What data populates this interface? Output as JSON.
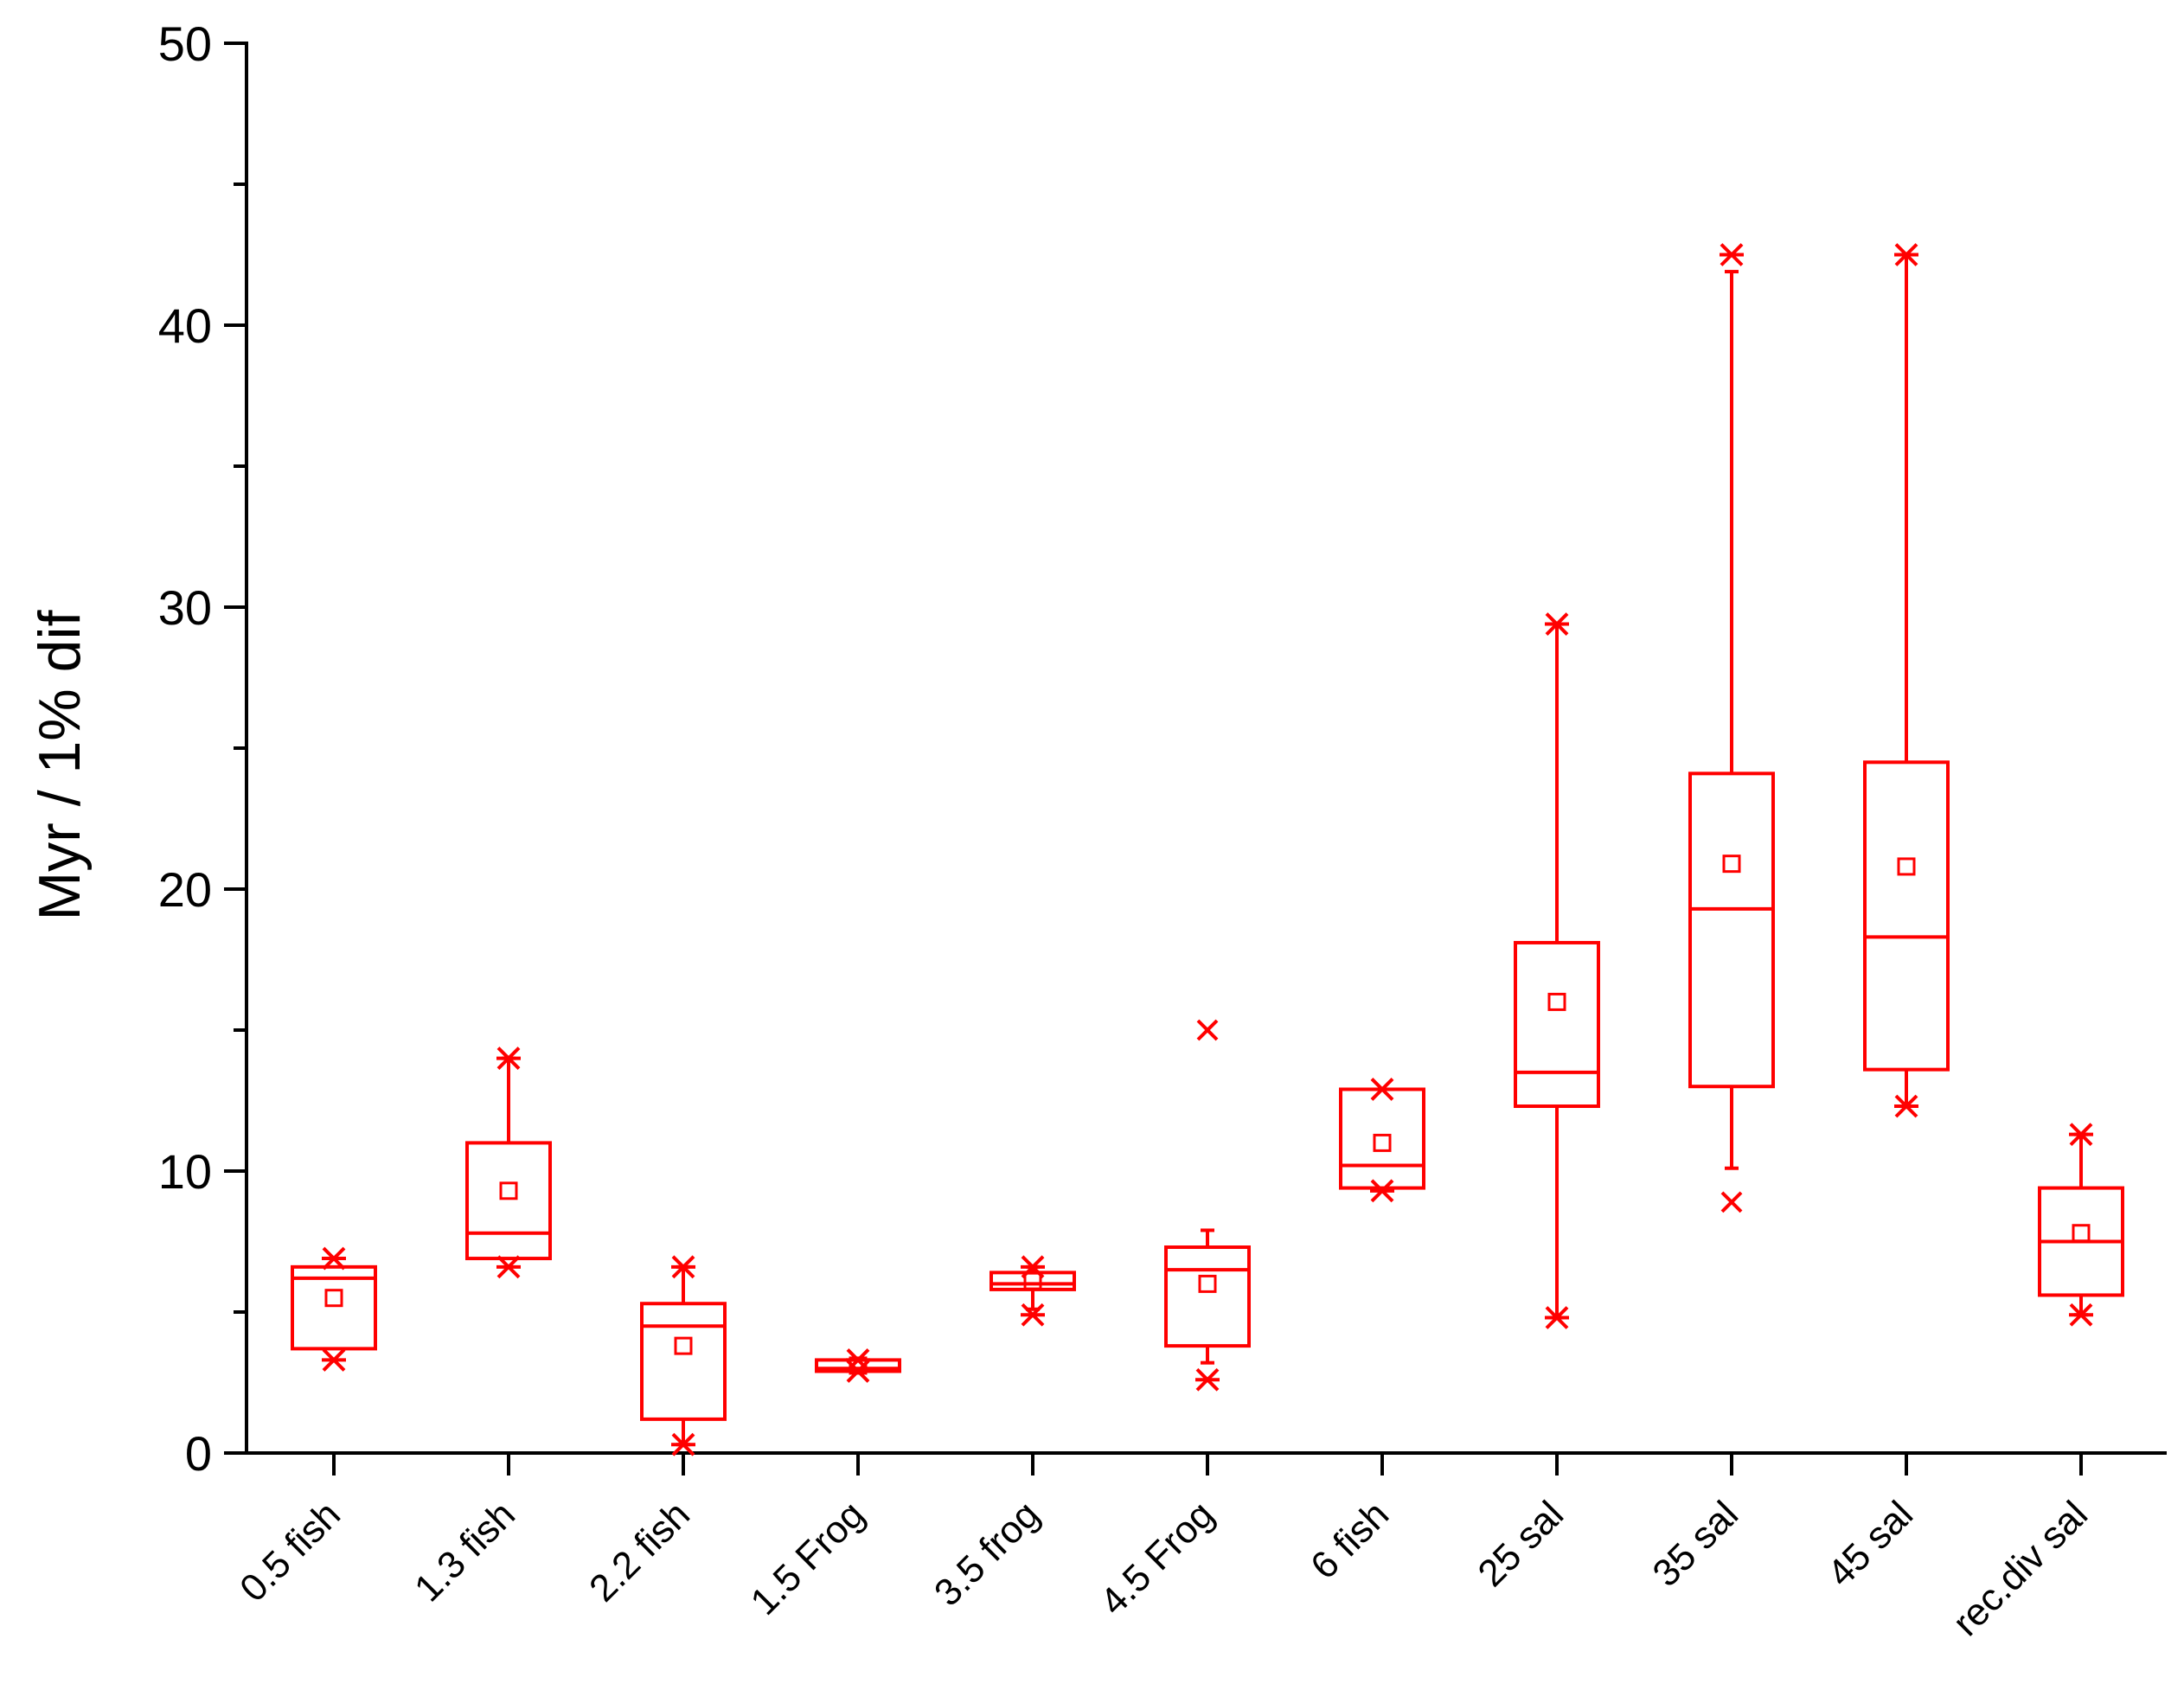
{
  "chart_data": {
    "type": "boxplot",
    "title": "",
    "xlabel": "",
    "ylabel": "Myr / 1% dif",
    "ylim": [
      0,
      50
    ],
    "y_major_ticks": [
      0,
      10,
      20,
      30,
      40,
      50
    ],
    "y_minor_step": 5,
    "color": "#ff0000",
    "categories": [
      "0.5 fish",
      "1.3 fish",
      "2.2 fish",
      "1.5 Frog",
      "3.5 frog",
      "4.5 Frog",
      "6 fish",
      "25 sal",
      "35 sal",
      "45 sal",
      "rec.div sal"
    ],
    "boxes": [
      {
        "q1": 3.7,
        "median": 6.2,
        "q3": 6.6,
        "mean": 5.5,
        "whisker_low": 3.7,
        "whisker_high": 6.6,
        "star_low": 3.3,
        "star_high": 6.9,
        "outliers": []
      },
      {
        "q1": 6.9,
        "median": 7.8,
        "q3": 11.0,
        "mean": 9.3,
        "whisker_low": 6.9,
        "whisker_high": 14.0,
        "star_low": 6.6,
        "star_high": 14.0,
        "outliers": []
      },
      {
        "q1": 1.2,
        "median": 4.5,
        "q3": 5.3,
        "mean": 3.8,
        "whisker_low": 0.3,
        "whisker_high": 6.6,
        "star_low": 0.3,
        "star_high": 6.6,
        "outliers": []
      },
      {
        "q1": 2.9,
        "median": 3.0,
        "q3": 3.3,
        "mean": 3.1,
        "whisker_low": 2.9,
        "whisker_high": 3.3,
        "star_low": 2.9,
        "star_high": 3.3,
        "outliers": []
      },
      {
        "q1": 5.8,
        "median": 6.0,
        "q3": 6.4,
        "mean": 6.1,
        "whisker_low": 5.1,
        "whisker_high": 6.6,
        "star_low": 4.9,
        "star_high": 6.6,
        "outliers": []
      },
      {
        "q1": 3.8,
        "median": 6.5,
        "q3": 7.3,
        "mean": 6.0,
        "whisker_low": 3.2,
        "whisker_high": 7.9,
        "star_low": 2.6,
        "star_high": null,
        "outliers": [
          15.0
        ]
      },
      {
        "q1": 9.4,
        "median": 10.2,
        "q3": 12.9,
        "mean": 11.0,
        "whisker_low": 9.4,
        "whisker_high": 12.9,
        "star_low": 9.3,
        "star_high": 12.9,
        "outliers": []
      },
      {
        "q1": 12.3,
        "median": 13.5,
        "q3": 18.1,
        "mean": 16.0,
        "whisker_low": 4.8,
        "whisker_high": 29.4,
        "star_low": 4.8,
        "star_high": 29.4,
        "outliers": []
      },
      {
        "q1": 13.0,
        "median": 19.3,
        "q3": 24.1,
        "mean": 20.9,
        "whisker_low": 10.1,
        "whisker_high": 41.9,
        "star_low": null,
        "star_high": 42.5,
        "outliers": [
          8.9
        ]
      },
      {
        "q1": 13.6,
        "median": 18.3,
        "q3": 24.5,
        "mean": 20.8,
        "whisker_low": 12.3,
        "whisker_high": 42.5,
        "star_low": 12.3,
        "star_high": 42.5,
        "outliers": []
      },
      {
        "q1": 5.6,
        "median": 7.5,
        "q3": 9.4,
        "mean": 7.8,
        "whisker_low": 4.9,
        "whisker_high": 11.3,
        "star_low": 4.9,
        "star_high": 11.3,
        "outliers": []
      }
    ]
  }
}
